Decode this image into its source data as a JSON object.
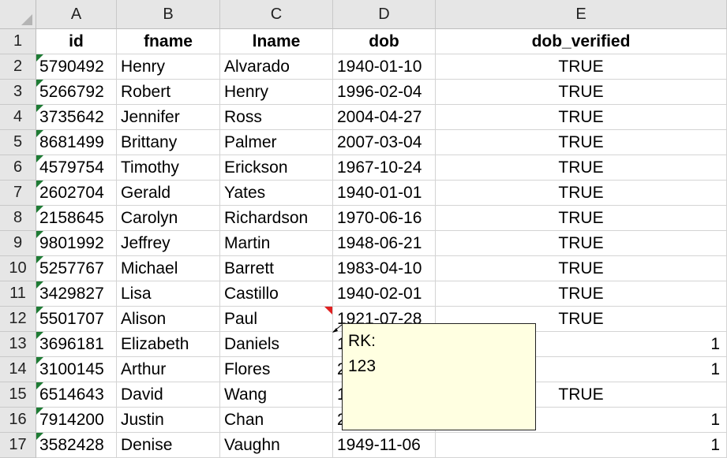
{
  "columns": [
    "A",
    "B",
    "C",
    "D",
    "E"
  ],
  "header_row": {
    "row_number": "1",
    "cells": [
      "id",
      "fname",
      "lname",
      "dob",
      "dob_verified"
    ]
  },
  "rows": [
    {
      "num": "2",
      "id": "5790492",
      "fname": "Henry",
      "lname": "Alvarado",
      "dob": "1940-01-10",
      "dob_verified": "TRUE"
    },
    {
      "num": "3",
      "id": "5266792",
      "fname": "Robert",
      "lname": "Henry",
      "dob": "1996-02-04",
      "dob_verified": "TRUE"
    },
    {
      "num": "4",
      "id": "3735642",
      "fname": "Jennifer",
      "lname": "Ross",
      "dob": "2004-04-27",
      "dob_verified": "TRUE"
    },
    {
      "num": "5",
      "id": "8681499",
      "fname": "Brittany",
      "lname": "Palmer",
      "dob": "2007-03-04",
      "dob_verified": "TRUE"
    },
    {
      "num": "6",
      "id": "4579754",
      "fname": "Timothy",
      "lname": "Erickson",
      "dob": "1967-10-24",
      "dob_verified": "TRUE"
    },
    {
      "num": "7",
      "id": "2602704",
      "fname": "Gerald",
      "lname": "Yates",
      "dob": "1940-01-01",
      "dob_verified": "TRUE"
    },
    {
      "num": "8",
      "id": "2158645",
      "fname": "Carolyn",
      "lname": "Richardson",
      "dob": "1970-06-16",
      "dob_verified": "TRUE"
    },
    {
      "num": "9",
      "id": "9801992",
      "fname": "Jeffrey",
      "lname": "Martin",
      "dob": "1948-06-21",
      "dob_verified": "TRUE"
    },
    {
      "num": "10",
      "id": "5257767",
      "fname": "Michael",
      "lname": "Barrett",
      "dob": "1983-04-10",
      "dob_verified": "TRUE"
    },
    {
      "num": "11",
      "id": "3429827",
      "fname": "Lisa",
      "lname": "Castillo",
      "dob": "1940-02-01",
      "dob_verified": "TRUE"
    },
    {
      "num": "12",
      "id": "5501707",
      "fname": "Alison",
      "lname": "Paul",
      "dob": "1921-07-28",
      "dob_verified": "TRUE"
    },
    {
      "num": "13",
      "id": "3696181",
      "fname": "Elizabeth",
      "lname": "Daniels",
      "dob": "1",
      "dob_verified": "1"
    },
    {
      "num": "14",
      "id": "3100145",
      "fname": "Arthur",
      "lname": "Flores",
      "dob": "2",
      "dob_verified": "1"
    },
    {
      "num": "15",
      "id": "6514643",
      "fname": "David",
      "lname": "Wang",
      "dob": "1",
      "dob_verified": "TRUE"
    },
    {
      "num": "16",
      "id": "7914200",
      "fname": "Justin",
      "lname": "Chan",
      "dob": "2",
      "dob_verified": "1"
    },
    {
      "num": "17",
      "id": "3582428",
      "fname": "Denise",
      "lname": "Vaughn",
      "dob": "1949-11-06",
      "dob_verified": "1"
    }
  ],
  "comment": {
    "author": "RK:",
    "text": "123",
    "cell": "D13"
  },
  "colors": {
    "header_bg": "#e6e6e6",
    "grid": "#d4d4d4",
    "number_stored_as_text": "#1e7b34",
    "comment_indicator": "#e02020",
    "comment_bg": "#ffffe1"
  }
}
